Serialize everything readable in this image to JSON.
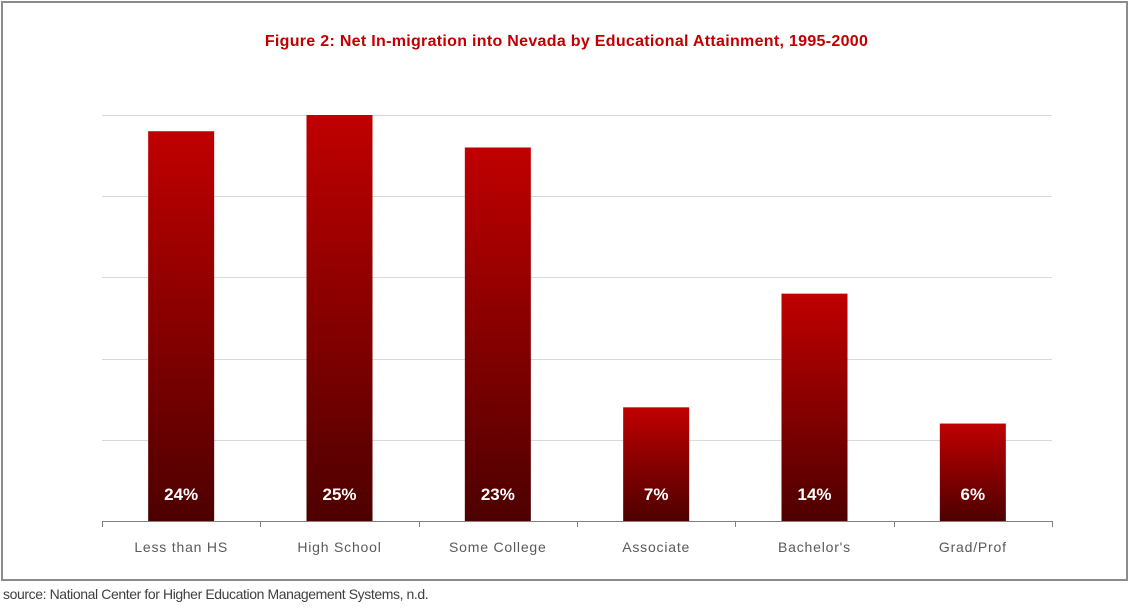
{
  "colors": {
    "bar_top": "#c00000",
    "bar_bottom": "#4d0000",
    "title": "#c00000",
    "gridline": "#d9d9d9",
    "axis": "#808080",
    "tick_label": "#595959",
    "data_label": "#ffffff"
  },
  "chart_data": {
    "type": "bar",
    "title": "Figure 2: Net In-migration into Nevada by Educational Attainment, 1995-2000",
    "xlabel": "",
    "ylabel": "",
    "categories": [
      "Less than HS",
      "High School",
      "Some College",
      "Associate",
      "Bachelor's",
      "Grad/Prof"
    ],
    "values": [
      24,
      25,
      23,
      7,
      14,
      6
    ],
    "data_labels": [
      "24%",
      "25%",
      "23%",
      "7%",
      "14%",
      "6%"
    ],
    "unit": "%",
    "ylim": [
      0,
      25
    ],
    "y_gridlines": [
      0,
      5,
      10,
      15,
      20,
      25
    ],
    "grid": true,
    "legend": "none"
  },
  "source": "source: National Center for Higher Education Management Systems, n.d."
}
